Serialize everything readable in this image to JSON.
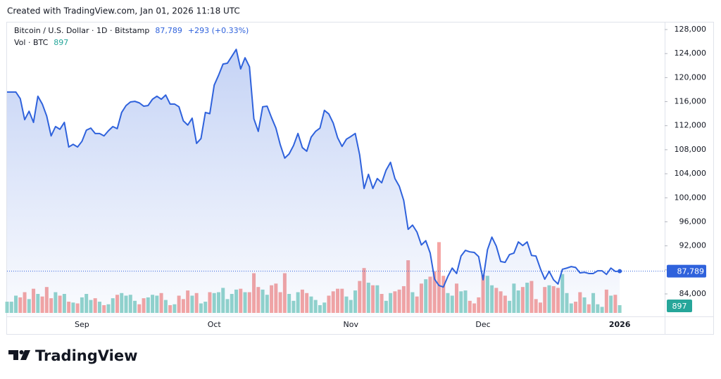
{
  "created_note": "Created with TradingView.com, Jan 01, 2026 11:18 UTC",
  "brand": "TradingView",
  "chart_data": {
    "type": "area",
    "title": "Bitcoin / U.S. Dollar · 1D · Bitstamp",
    "last_label": "87,789",
    "change_label": "+293 (+0.33%)",
    "color": "#2f62dc",
    "categories": [
      null,
      null,
      null,
      null,
      null,
      null,
      null,
      null,
      null,
      null,
      null,
      null,
      null,
      null,
      null,
      null,
      null,
      "Sep",
      null,
      null,
      null,
      null,
      null,
      null,
      null,
      null,
      null,
      null,
      null,
      null,
      null,
      null,
      null,
      null,
      null,
      null,
      null,
      null,
      null,
      null,
      null,
      null,
      null,
      null,
      null,
      null,
      null,
      "Oct",
      null,
      null,
      null,
      null,
      null,
      null,
      null,
      null,
      null,
      null,
      null,
      null,
      null,
      null,
      null,
      null,
      null,
      null,
      null,
      null,
      null,
      null,
      null,
      null,
      null,
      null,
      null,
      null,
      null,
      null,
      "Nov",
      null,
      null,
      null,
      null,
      null,
      null,
      null,
      null,
      null,
      null,
      null,
      null,
      null,
      null,
      null,
      null,
      null,
      null,
      null,
      null,
      null,
      null,
      null,
      null,
      null,
      null,
      null,
      null,
      null,
      "Dec",
      null,
      null,
      null,
      null,
      null,
      null,
      null,
      null,
      null,
      null,
      null,
      null,
      null,
      null,
      null,
      null,
      null,
      null,
      null,
      null,
      null,
      null,
      null,
      null,
      null,
      null,
      null,
      null,
      null,
      null,
      "2026"
    ],
    "values": [
      117600,
      117600,
      117600,
      116500,
      113000,
      114400,
      112550,
      116900,
      115600,
      113600,
      110300,
      111850,
      111400,
      112550,
      108450,
      108900,
      108450,
      109400,
      111250,
      111600,
      110700,
      110700,
      110300,
      111150,
      111850,
      111500,
      114200,
      115350,
      115950,
      116050,
      115800,
      115250,
      115350,
      116400,
      116900,
      116400,
      117100,
      115600,
      115600,
      115150,
      112800,
      112100,
      113250,
      109050,
      109850,
      114200,
      114000,
      118750,
      120400,
      122250,
      122400,
      123550,
      124700,
      121450,
      123300,
      121800,
      113150,
      111050,
      115150,
      115250,
      113350,
      111600,
      108800,
      106600,
      107300,
      108700,
      110700,
      108350,
      107750,
      110100,
      111050,
      111600,
      114550,
      113950,
      112450,
      110000,
      108550,
      109750,
      110200,
      110700,
      107150,
      101550,
      103900,
      101550,
      103200,
      102500,
      104600,
      105900,
      103200,
      101900,
      99550,
      94750,
      95450,
      94300,
      92150,
      92850,
      90800,
      86450,
      85400,
      85150,
      86900,
      88300,
      87400,
      90300,
      91250,
      91000,
      90900,
      90200,
      86350,
      91350,
      93450,
      91950,
      89400,
      89250,
      90550,
      90800,
      92650,
      92050,
      92650,
      90400,
      90300,
      88200,
      86450,
      87750,
      86350,
      85650,
      88100,
      88300,
      88550,
      88400,
      87500,
      87600,
      87400,
      87400,
      87850,
      87850,
      87250,
      88300,
      87750,
      87789
    ],
    "ylim": [
      80255,
      129170
    ],
    "yticks": [
      {
        "value": 84000,
        "label": "84,000"
      },
      {
        "value": 88000,
        "label": "88,000"
      },
      {
        "value": 92000,
        "label": "92,000"
      },
      {
        "value": 96000,
        "label": "96,000"
      },
      {
        "value": 100000,
        "label": "100,000"
      },
      {
        "value": 104000,
        "label": "104,000"
      },
      {
        "value": 108000,
        "label": "108,000"
      },
      {
        "value": 112000,
        "label": "112,000"
      },
      {
        "value": 116000,
        "label": "116,000"
      },
      {
        "value": 120000,
        "label": "120,000"
      },
      {
        "value": 124000,
        "label": "124,000"
      },
      {
        "value": 128000,
        "label": "128,000"
      }
    ],
    "volume": {
      "label": "Vol · BTC",
      "up_color": "#92d4cc",
      "down_color": "#f5a5a3",
      "ylim": [
        0,
        11000
      ],
      "values": [
        1300,
        1300,
        2000,
        1800,
        2400,
        1600,
        2800,
        2200,
        1900,
        3000,
        1700,
        2400,
        2000,
        2200,
        1300,
        1200,
        1100,
        1800,
        2200,
        1500,
        1700,
        1300,
        900,
        1000,
        1700,
        2100,
        2300,
        2000,
        2100,
        1400,
        1000,
        1700,
        1800,
        2100,
        2000,
        2300,
        1500,
        900,
        1000,
        2000,
        1600,
        2600,
        2000,
        2300,
        1100,
        1300,
        2400,
        2300,
        2400,
        2900,
        1600,
        2200,
        2700,
        2800,
        2400,
        2400,
        4600,
        3000,
        2700,
        2100,
        3200,
        3400,
        2400,
        4600,
        2200,
        1400,
        2400,
        2700,
        2300,
        1900,
        1500,
        900,
        1200,
        2000,
        2500,
        2800,
        2800,
        1900,
        1500,
        2600,
        3700,
        5200,
        3500,
        3200,
        3200,
        2200,
        1400,
        2300,
        2500,
        2700,
        3100,
        6100,
        2400,
        1900,
        3400,
        3900,
        4200,
        4800,
        8200,
        4300,
        2300,
        2000,
        3400,
        2500,
        2600,
        1400,
        1100,
        1800,
        4400,
        4300,
        3200,
        2900,
        2500,
        2000,
        1400,
        3400,
        2600,
        3000,
        3500,
        3700,
        1600,
        1200,
        3000,
        3200,
        3100,
        2900,
        4500,
        2300,
        1100,
        1300,
        2400,
        1800,
        1000,
        2300,
        1000,
        700,
        2700,
        2000,
        2100,
        897
      ]
    }
  }
}
